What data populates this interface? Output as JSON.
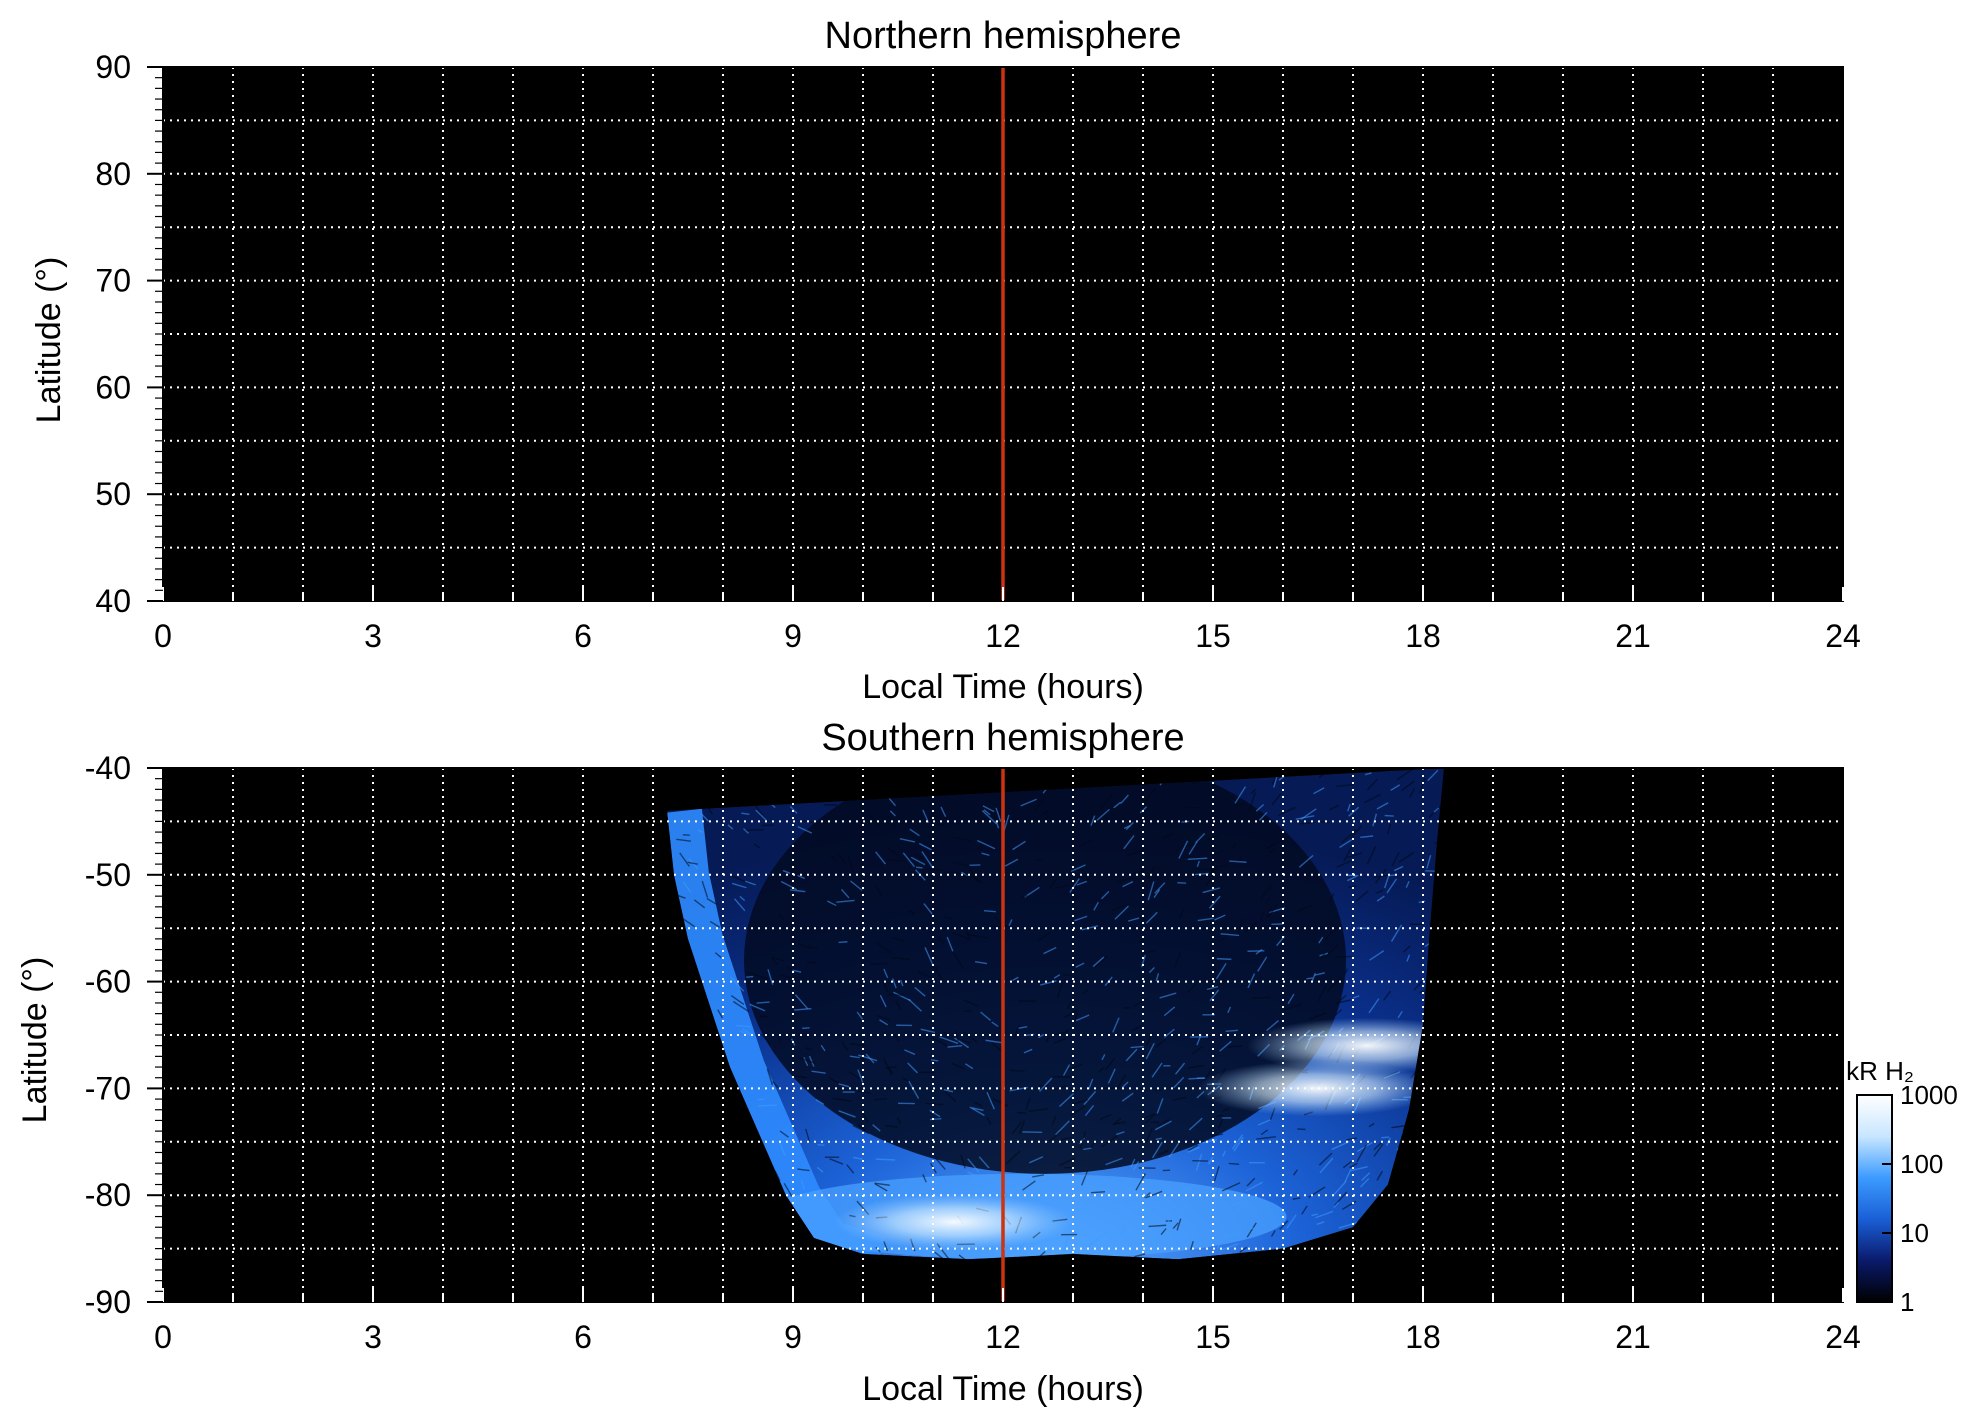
{
  "chart_data": [
    {
      "type": "heatmap",
      "title": "Northern hemisphere",
      "xlabel": "Local Time (hours)",
      "ylabel": "Latitude (°)",
      "xlim": [
        0,
        24
      ],
      "ylim": [
        40,
        90
      ],
      "xticks": [
        "0",
        "3",
        "6",
        "9",
        "12",
        "15",
        "18",
        "21",
        "24"
      ],
      "yticks": [
        "40",
        "50",
        "60",
        "70",
        "80",
        "90"
      ],
      "grid": true,
      "reference_line": {
        "x": 12,
        "color": "#cc3311"
      },
      "emission": "none"
    },
    {
      "type": "heatmap",
      "title": "Southern hemisphere",
      "xlabel": "Local Time (hours)",
      "ylabel": "Latitude (°)",
      "xlim": [
        0,
        24
      ],
      "ylim": [
        -90,
        -40
      ],
      "xticks": [
        "0",
        "3",
        "6",
        "9",
        "12",
        "15",
        "18",
        "21",
        "24"
      ],
      "yticks": [
        "-90",
        "-80",
        "-70",
        "-60",
        "-50",
        "-40"
      ],
      "grid": true,
      "reference_line": {
        "x": 12,
        "color": "#cc3311"
      },
      "emission_region": {
        "lat_top": -40,
        "boundary": [
          {
            "lt": 7.2,
            "lat": -44
          },
          {
            "lt": 7.3,
            "lat": -50
          },
          {
            "lt": 7.5,
            "lat": -56
          },
          {
            "lt": 7.8,
            "lat": -62
          },
          {
            "lt": 8.1,
            "lat": -68
          },
          {
            "lt": 8.5,
            "lat": -74
          },
          {
            "lt": 8.9,
            "lat": -80
          },
          {
            "lt": 9.3,
            "lat": -84
          },
          {
            "lt": 10.0,
            "lat": -85.5
          },
          {
            "lt": 11.5,
            "lat": -86
          },
          {
            "lt": 13.0,
            "lat": -85.5
          },
          {
            "lt": 14.5,
            "lat": -86
          },
          {
            "lt": 16.0,
            "lat": -85
          },
          {
            "lt": 17.0,
            "lat": -83
          },
          {
            "lt": 17.5,
            "lat": -79
          },
          {
            "lt": 17.8,
            "lat": -72
          },
          {
            "lt": 18.0,
            "lat": -64
          },
          {
            "lt": 18.1,
            "lat": -55
          },
          {
            "lt": 18.2,
            "lat": -47
          },
          {
            "lt": 18.3,
            "lat": -40
          }
        ],
        "left_arc_width_hours": 0.5,
        "bright_features": [
          {
            "lt": 11.3,
            "lat": -82.5,
            "level": "1000"
          },
          {
            "lt": 16.5,
            "lat": -70,
            "level": "1000"
          },
          {
            "lt": 17.2,
            "lat": -66,
            "level": "1000"
          }
        ]
      },
      "colorbar": {
        "label": "kR H₂",
        "scale": "log",
        "ticks": [
          "1",
          "10",
          "100",
          "1000"
        ],
        "colors": [
          "#000000",
          "#0a1a6b",
          "#1a5fd6",
          "#3c9bff",
          "#c8e6ff",
          "#ffffff"
        ]
      }
    }
  ]
}
